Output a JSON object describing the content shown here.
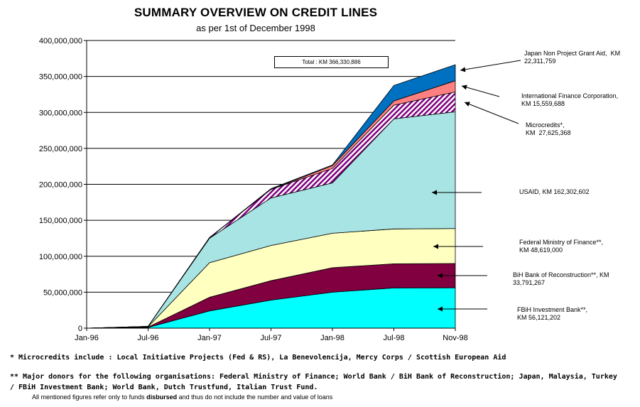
{
  "chart_data": {
    "type": "area",
    "stacked": true,
    "title": "SUMMARY OVERVIEW ON CREDIT LINES",
    "subtitle": "as per 1st of December 1998",
    "categories": [
      "Jan-96",
      "Jul-96",
      "Jan-97",
      "Jul-97",
      "Jan-98",
      "Jul-98",
      "Nov-98"
    ],
    "ylim": [
      0,
      400000000
    ],
    "yticks": [
      0,
      50000000,
      100000000,
      150000000,
      200000000,
      250000000,
      300000000,
      350000000,
      400000000
    ],
    "ytick_labels": [
      "0",
      "50,000,000",
      "100,000,000",
      "150,000,000",
      "200,000,000",
      "250,000,000",
      "300,000,000",
      "350,000,000",
      "400,000,000"
    ],
    "grid": true,
    "total_label": "Total : KM 366,330,886",
    "series": [
      {
        "name": "FBiH Investment Bank**",
        "color": "#00FFFF",
        "pattern": "solid",
        "values": [
          0,
          1000000,
          24000000,
          39000000,
          50000000,
          56000000,
          56121202
        ]
      },
      {
        "name": "BiH Bank of Reconstruction**",
        "color": "#800040",
        "pattern": "solid",
        "values": [
          0,
          500000,
          19000000,
          27000000,
          34000000,
          33500000,
          33791267
        ]
      },
      {
        "name": "Federal Ministry of Finance**",
        "color": "#FFFFC0",
        "pattern": "solid",
        "values": [
          0,
          500000,
          48000000,
          49000000,
          48000000,
          48500000,
          48619000
        ]
      },
      {
        "name": "USAID",
        "color": "#A8E4E4",
        "pattern": "solid",
        "values": [
          0,
          500000,
          34000000,
          66000000,
          70000000,
          153000000,
          162302602
        ]
      },
      {
        "name": "Microcredits*",
        "color": "#800080",
        "pattern": "hatch",
        "values": [
          0,
          0,
          1000000,
          12000000,
          20000000,
          19000000,
          27625368
        ]
      },
      {
        "name": "International Finance Corporation",
        "color": "#FF8080",
        "pattern": "solid",
        "values": [
          0,
          0,
          0,
          0,
          4000000,
          6000000,
          15559688
        ]
      },
      {
        "name": "Japan Non Project Grant Aid",
        "color": "#0070C0",
        "pattern": "solid",
        "values": [
          0,
          0,
          0,
          1000000,
          1000000,
          21500000,
          22311759
        ]
      }
    ]
  },
  "labels": {
    "japan": "Japan Non Project Grant Aid,  KM\n22,311,759",
    "ifc": "International Finance Corporation,\nKM 15,559,688",
    "micro": "Microcredits*,\nKM  27,625,368",
    "usaid": "USAID, KM 162,302,602",
    "fmf": "Federal Ministry of Finance**,\nKM 48,619,000",
    "bbr": "BiH Bank of Reconstruction**, KM\n33,791,267",
    "fib": "FBiH Investment Bank**,\nKM 56,121,202"
  },
  "footnotes": {
    "note1": "*  Microcredits include : Local Initiative Projects (Fed & RS), La Benevolencija, Mercy Corps / Scottish European Aid",
    "note2a": "** Major donors for the following organisations: Federal Ministry of Finance; World Bank / BiH Bank of Reconstruction; Japan, Malaysia, Turkey",
    "note2b": "/ FBiH Investment Bank; World Bank, Dutch Trustfund, Italian Trust Fund.",
    "note3_pre": "All mentioned figures refer only to funds ",
    "note3_bold": "disbursed",
    "note3_post": " and thus do not include the number and value of loans"
  }
}
